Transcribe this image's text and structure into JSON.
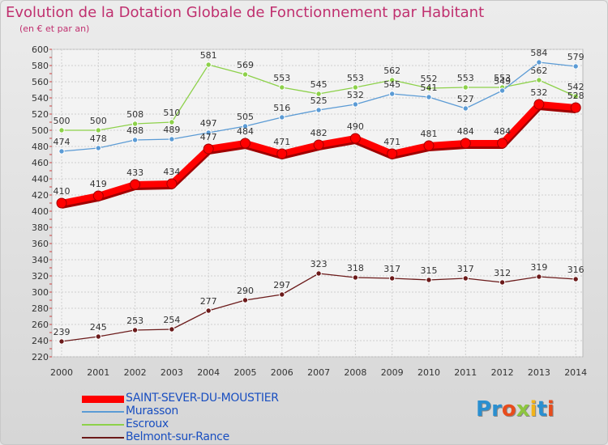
{
  "chart_data": {
    "type": "line",
    "title": "Evolution de la Dotation Globale de Fonctionnement par Habitant",
    "subtitle": "(en € et par an)",
    "xlabel": "",
    "ylabel": "",
    "categories": [
      "2000",
      "2001",
      "2002",
      "2003",
      "2004",
      "2005",
      "2006",
      "2007",
      "2008",
      "2009",
      "2010",
      "2011",
      "2012",
      "2013",
      "2014"
    ],
    "ylim": [
      220,
      600
    ],
    "yticks": [
      220,
      240,
      260,
      280,
      300,
      320,
      340,
      360,
      380,
      400,
      420,
      440,
      460,
      480,
      500,
      520,
      540,
      560,
      580,
      600
    ],
    "grid": true,
    "legend": "bottom-left",
    "series": [
      {
        "name": "SAINT-SEVER-DU-MOUSTIER",
        "color": "#ff0000",
        "values": [
          410,
          419,
          433,
          434,
          477,
          484,
          471,
          482,
          490,
          471,
          481,
          484,
          484,
          532,
          528
        ]
      },
      {
        "name": "Murasson",
        "color": "#5b9bd5",
        "values": [
          474,
          478,
          488,
          489,
          497,
          505,
          516,
          525,
          532,
          545,
          541,
          527,
          549,
          584,
          579
        ]
      },
      {
        "name": "Escroux",
        "color": "#8dd14a",
        "values": [
          500,
          500,
          508,
          510,
          581,
          569,
          553,
          545,
          553,
          562,
          552,
          553,
          553,
          562,
          542
        ]
      },
      {
        "name": "Belmont-sur-Rance",
        "color": "#6b1a1a",
        "values": [
          239,
          245,
          253,
          254,
          277,
          290,
          297,
          323,
          318,
          317,
          315,
          317,
          312,
          319,
          316
        ]
      }
    ]
  },
  "logo": {
    "text": "Proxiti",
    "letters": [
      "P",
      "r",
      "o",
      "x",
      "i",
      "t",
      "i"
    ],
    "colors": [
      "#2a8fd0",
      "#2a8fd0",
      "#e84c1c",
      "#8dc63f",
      "#f2b31b",
      "#2a8fd0",
      "#e84c1c"
    ]
  }
}
